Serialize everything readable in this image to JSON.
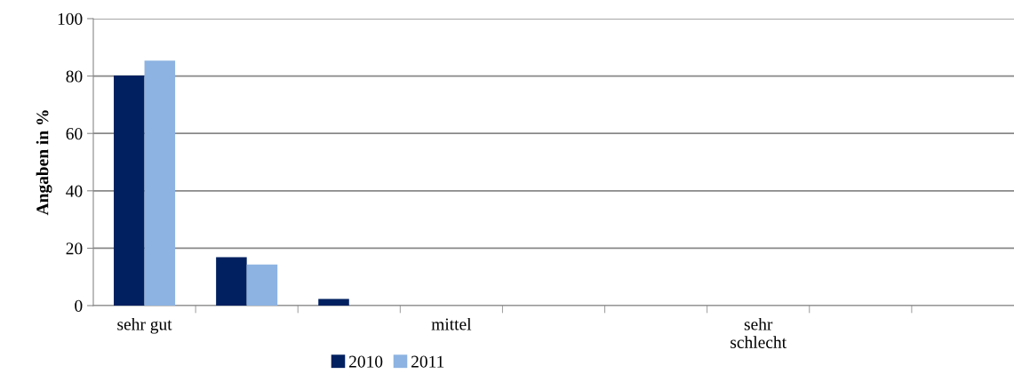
{
  "chart_data": {
    "type": "bar",
    "ylabel": "Angaben in %",
    "categories": [
      "sehr gut",
      null,
      null,
      "mittel",
      null,
      null,
      "sehr\nschlecht",
      null,
      null
    ],
    "series": [
      {
        "name": "2010",
        "color": "#002060",
        "values": [
          80.2,
          16.9,
          2.3,
          0,
          0,
          0,
          0,
          0,
          0
        ]
      },
      {
        "name": "2011",
        "color": "#8db3e2",
        "values": [
          85.4,
          14.3,
          0,
          0,
          0,
          0,
          0,
          0,
          0
        ]
      }
    ],
    "ylim": [
      0,
      100
    ],
    "yticks": [
      0,
      20,
      40,
      60,
      80,
      100
    ],
    "grid": "y",
    "legend": "bottom"
  }
}
